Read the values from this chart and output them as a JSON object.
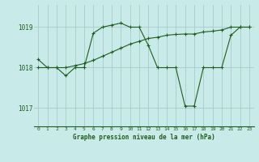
{
  "title": "Graphe pression niveau de la mer (hPa)",
  "bg_color": "#c8eae8",
  "line_color": "#1e5e1e",
  "grid_color": "#a8ccc8",
  "xlim": [
    -0.5,
    23.5
  ],
  "ylim": [
    1016.55,
    1019.55
  ],
  "yticks": [
    1017,
    1018,
    1019
  ],
  "xticks": [
    0,
    1,
    2,
    3,
    4,
    5,
    6,
    7,
    8,
    9,
    10,
    11,
    12,
    13,
    14,
    15,
    16,
    17,
    18,
    19,
    20,
    21,
    22,
    23
  ],
  "series1_x": [
    0,
    1,
    2,
    3,
    4,
    5,
    6,
    7,
    8,
    9,
    10,
    11,
    12,
    13,
    14,
    15,
    16,
    17,
    18,
    19,
    20,
    21,
    22,
    23
  ],
  "series1_y": [
    1018.2,
    1018.0,
    1018.0,
    1017.8,
    1018.0,
    1018.0,
    1018.85,
    1019.0,
    1019.05,
    1019.1,
    1019.0,
    1019.0,
    1018.55,
    1018.0,
    1018.0,
    1018.0,
    1017.05,
    1017.05,
    1018.0,
    1018.0,
    1018.0,
    1018.8,
    1019.0,
    1019.0
  ],
  "series2_x": [
    0,
    1,
    2,
    3,
    4,
    5,
    6,
    7,
    8,
    9,
    10,
    11,
    12,
    13,
    14,
    15,
    16,
    17,
    18,
    19,
    20,
    21,
    22,
    23
  ],
  "series2_y": [
    1018.0,
    1018.0,
    1018.0,
    1018.0,
    1018.05,
    1018.1,
    1018.18,
    1018.28,
    1018.38,
    1018.48,
    1018.58,
    1018.65,
    1018.72,
    1018.75,
    1018.8,
    1018.82,
    1018.83,
    1018.83,
    1018.88,
    1018.9,
    1018.93,
    1019.0,
    1019.0,
    1019.0
  ]
}
